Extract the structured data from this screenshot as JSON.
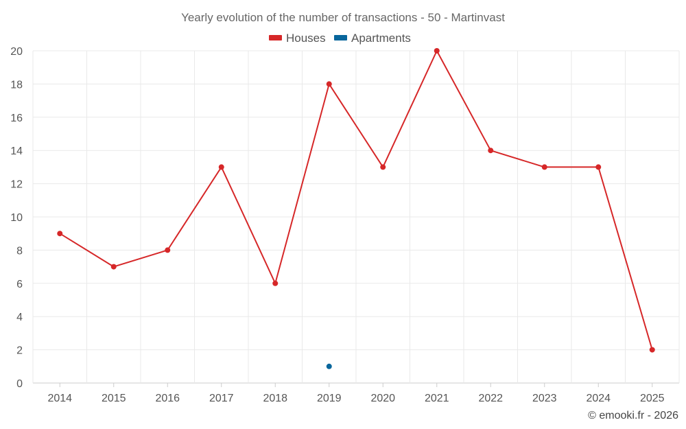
{
  "chart_data": {
    "type": "line",
    "title": "Yearly evolution of the number of transactions - 50 - Martinvast",
    "categories": [
      "2014",
      "2015",
      "2016",
      "2017",
      "2018",
      "2019",
      "2020",
      "2021",
      "2022",
      "2023",
      "2024",
      "2025"
    ],
    "series": [
      {
        "name": "Houses",
        "color": "#d62728",
        "values": [
          9,
          7,
          8,
          13,
          6,
          18,
          13,
          20,
          14,
          13,
          13,
          2
        ]
      },
      {
        "name": "Apartments",
        "color": "#08669c",
        "values": [
          null,
          null,
          null,
          null,
          null,
          1,
          null,
          null,
          null,
          null,
          null,
          null
        ]
      }
    ],
    "ylim": [
      0,
      20
    ],
    "yticks": [
      0,
      2,
      4,
      6,
      8,
      10,
      12,
      14,
      16,
      18,
      20
    ],
    "xlabel": "",
    "ylabel": "",
    "grid": true,
    "legend": "top-center"
  },
  "footer": "© emooki.fr - 2026"
}
